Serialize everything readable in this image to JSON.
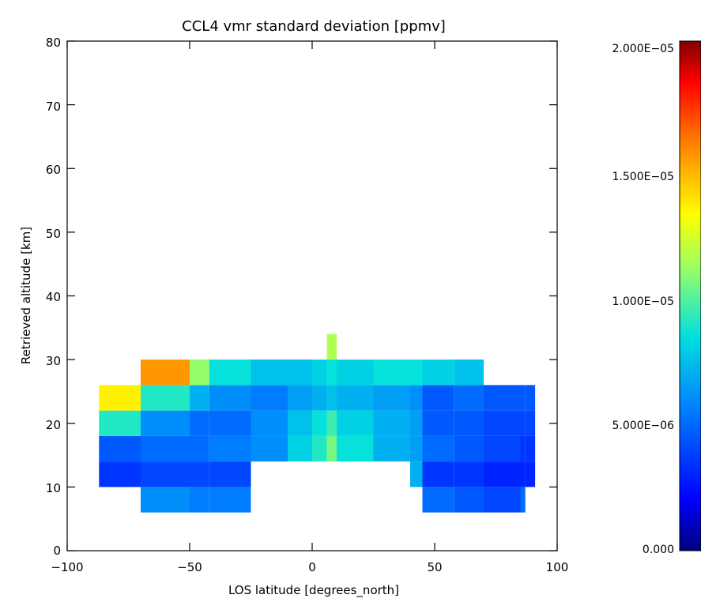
{
  "chart_data": {
    "type": "heatmap",
    "title": "CCL4 vmr standard deviation [ppmv]",
    "xlabel": "LOS latitude [degrees_north]",
    "ylabel": "Retrieved altitude [km]",
    "xlim": [
      -100,
      100
    ],
    "ylim": [
      0,
      80
    ],
    "x_ticks": [
      "−100",
      "−50",
      "0",
      "50",
      "100"
    ],
    "y_ticks": [
      "0",
      "10",
      "20",
      "30",
      "40",
      "50",
      "60",
      "70",
      "80"
    ],
    "colorbar": {
      "colormap": "rainbow",
      "range": [
        0,
        2e-05
      ],
      "tick_labels": [
        "0.000",
        "5.000E−06",
        "1.000E−05",
        "1.500E−05",
        "2.000E−05"
      ],
      "tick_values": [
        0,
        5e-06,
        1e-05,
        1.5e-05,
        2e-05
      ]
    },
    "grid": false,
    "x_bin_edges": [
      -87,
      -70,
      -50,
      -42,
      -25,
      -10,
      0,
      6,
      10,
      25,
      40,
      45,
      58,
      70,
      85,
      87,
      91
    ],
    "altitude_bin_edges": [
      6,
      10,
      14,
      18,
      22,
      26,
      30,
      34
    ],
    "values": [
      [
        null,
        6e-06,
        5.5e-06,
        5.5e-06,
        null,
        null,
        null,
        null,
        null,
        null,
        null,
        5e-06,
        4.5e-06,
        4e-06,
        5e-06,
        null
      ],
      [
        3.5e-06,
        4e-06,
        4e-06,
        4e-06,
        null,
        null,
        null,
        null,
        null,
        null,
        7e-06,
        3.5e-06,
        3.5e-06,
        3e-06,
        3e-06,
        3e-06
      ],
      [
        4.5e-06,
        5e-06,
        5e-06,
        5.5e-06,
        6e-06,
        8e-06,
        9e-06,
        1.05e-05,
        8.5e-06,
        7e-06,
        6.5e-06,
        5e-06,
        4.5e-06,
        4e-06,
        3.5e-06,
        3.5e-06
      ],
      [
        9e-06,
        6e-06,
        5e-06,
        5e-06,
        6e-06,
        7.5e-06,
        8.5e-06,
        9.5e-06,
        8e-06,
        7e-06,
        6.5e-06,
        4.5e-06,
        4.5e-06,
        4e-06,
        4e-06,
        4e-06
      ],
      [
        1.35e-05,
        9e-06,
        7e-06,
        6e-06,
        5.5e-06,
        6.5e-06,
        7e-06,
        7.5e-06,
        7e-06,
        6.5e-06,
        6e-06,
        4.5e-06,
        5e-06,
        4.5e-06,
        4.5e-06,
        4.5e-06
      ],
      [
        null,
        1.55e-05,
        1.1e-05,
        8.5e-06,
        7.5e-06,
        7.5e-06,
        8e-06,
        8.5e-06,
        8e-06,
        8.5e-06,
        8.5e-06,
        8e-06,
        7.5e-06,
        null,
        null,
        null
      ],
      [
        null,
        null,
        null,
        null,
        null,
        null,
        null,
        1.15e-05,
        null,
        null,
        null,
        null,
        null,
        null,
        null,
        null
      ]
    ]
  }
}
